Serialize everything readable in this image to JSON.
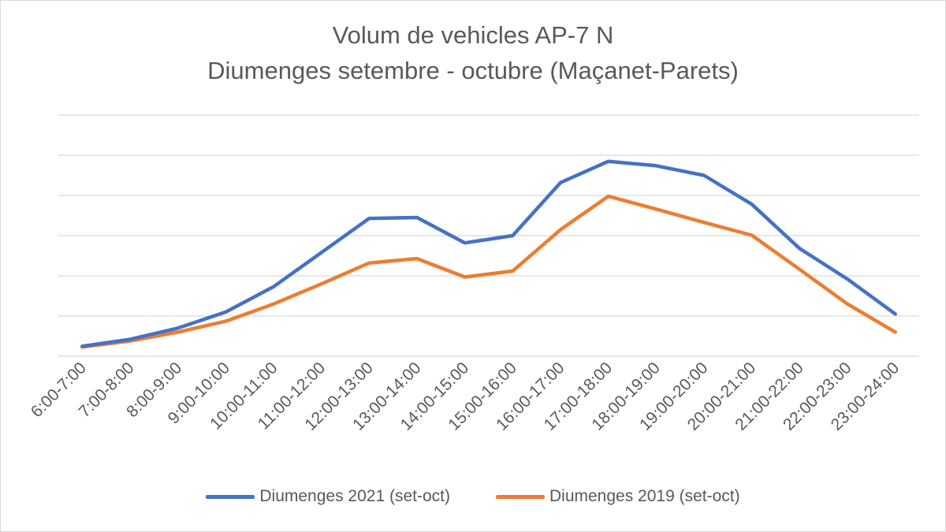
{
  "chart_data": {
    "type": "line",
    "title": "Volum de vehicles AP-7 N",
    "subtitle": "Diumenges setembre - octubre (Maçanet-Parets)",
    "xlabel": "",
    "ylabel": "",
    "y_axis_labels_visible": false,
    "ylim": [
      0,
      6
    ],
    "grid": true,
    "legend_position": "bottom",
    "categories": [
      "6:00-7:00",
      "7:00-8:00",
      "8:00-9:00",
      "9:00-10:00",
      "10:00-11:00",
      "11:00-12:00",
      "12:00-13:00",
      "13:00-14:00",
      "14:00-15:00",
      "15:00-16:00",
      "16:00-17:00",
      "17:00-18:00",
      "18:00-19:00",
      "19:00-20:00",
      "20:00-21:00",
      "21:00-22:00",
      "22:00-23:00",
      "23:00-24:00"
    ],
    "series": [
      {
        "name": "Diumenges 2021 (set-oct)",
        "color": "#4472C4",
        "values": [
          0.25,
          0.42,
          0.7,
          1.1,
          1.73,
          2.58,
          3.43,
          3.45,
          2.82,
          3.0,
          4.32,
          4.85,
          4.74,
          4.5,
          3.78,
          2.68,
          1.92,
          1.05
        ]
      },
      {
        "name": "Diumenges 2019 (set-oct)",
        "color": "#ED7D31",
        "values": [
          0.23,
          0.38,
          0.6,
          0.87,
          1.3,
          1.8,
          2.32,
          2.43,
          1.97,
          2.12,
          3.15,
          3.98,
          3.66,
          3.33,
          3.01,
          2.16,
          1.3,
          0.6
        ]
      }
    ]
  }
}
